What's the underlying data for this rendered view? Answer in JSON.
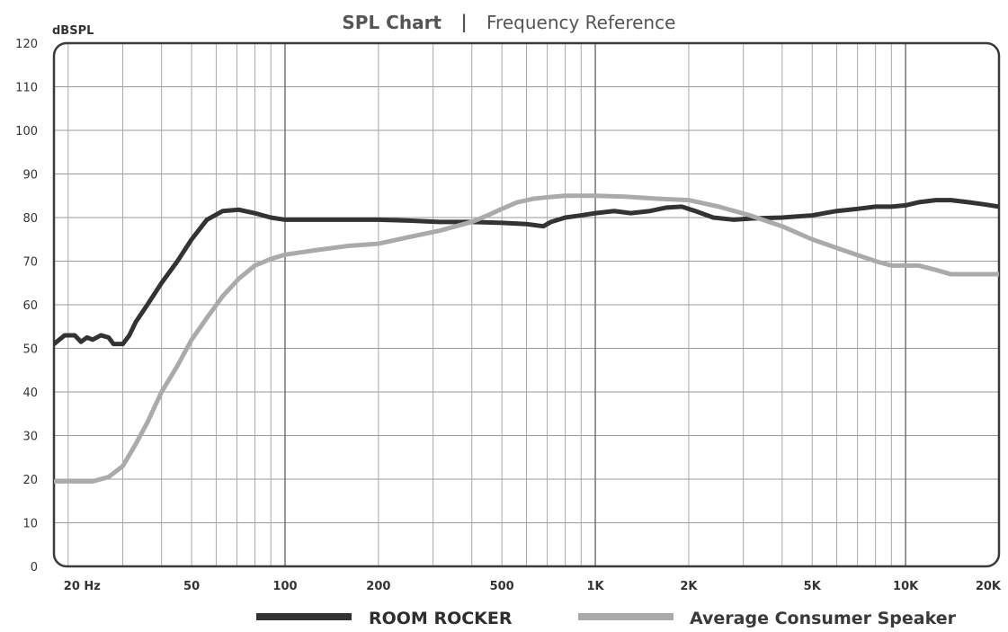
{
  "chart_data": {
    "type": "line",
    "title": "SPL Chart",
    "title_separator": "|",
    "subtitle": "Frequency Reference",
    "ylabel": "dBSPL",
    "xlabel": "",
    "x_scale": "log",
    "xlim": [
      18,
      20000
    ],
    "ylim": [
      0,
      120
    ],
    "grid": true,
    "legend_position": "bottom-right",
    "y_ticks": [
      0,
      10,
      20,
      30,
      40,
      50,
      60,
      70,
      80,
      90,
      100,
      110,
      120
    ],
    "x_ticks": [
      {
        "value": 20,
        "label": "20 Hz"
      },
      {
        "value": 50,
        "label": "50"
      },
      {
        "value": 100,
        "label": "100"
      },
      {
        "value": 200,
        "label": "200"
      },
      {
        "value": 500,
        "label": "500"
      },
      {
        "value": 1000,
        "label": "1K"
      },
      {
        "value": 2000,
        "label": "2K"
      },
      {
        "value": 5000,
        "label": "5K"
      },
      {
        "value": 10000,
        "label": "10K"
      },
      {
        "value": 20000,
        "label": "20K"
      }
    ],
    "series": [
      {
        "name": "ROOM ROCKER",
        "color": "#333333",
        "x": [
          18,
          19.5,
          21,
          22,
          23,
          24,
          25.5,
          27,
          28,
          30,
          31.5,
          33,
          36,
          40,
          45,
          50,
          56,
          63,
          71,
          80,
          90,
          100,
          125,
          160,
          200,
          250,
          315,
          400,
          500,
          600,
          680,
          720,
          800,
          900,
          1000,
          1150,
          1300,
          1500,
          1700,
          1900,
          2100,
          2400,
          2800,
          3200,
          4000,
          5000,
          6000,
          7000,
          8000,
          9000,
          10000,
          11000,
          12500,
          14000,
          16000,
          18000,
          20000
        ],
        "y": [
          51,
          53,
          53,
          51.5,
          52.5,
          52,
          53,
          52.5,
          51,
          51,
          53,
          56,
          60,
          65,
          70,
          75,
          79.5,
          81.5,
          81.8,
          81,
          80,
          79.5,
          79.5,
          79.5,
          79.5,
          79.3,
          79,
          79,
          78.8,
          78.5,
          78,
          79,
          80,
          80.5,
          81,
          81.5,
          81,
          81.5,
          82.3,
          82.5,
          81.5,
          80,
          79.5,
          79.8,
          80,
          80.5,
          81.5,
          82,
          82.5,
          82.5,
          82.8,
          83.5,
          84,
          84,
          83.5,
          83,
          82.5
        ]
      },
      {
        "name": "Average Consumer Speaker",
        "color": "#aaaaaa",
        "x": [
          18,
          20,
          24,
          27,
          30,
          33,
          36,
          40,
          45,
          50,
          56,
          63,
          71,
          80,
          90,
          100,
          112,
          125,
          160,
          200,
          250,
          315,
          400,
          450,
          500,
          560,
          630,
          710,
          800,
          900,
          1000,
          1250,
          1600,
          2000,
          2500,
          3150,
          4000,
          5000,
          6300,
          8000,
          9000,
          10000,
          11000,
          12500,
          14000,
          16000,
          18000,
          20000
        ],
        "y": [
          19.5,
          19.5,
          19.5,
          20.5,
          23,
          28,
          33,
          40,
          46,
          52,
          57,
          62,
          66,
          69,
          70.5,
          71.5,
          72,
          72.5,
          73.5,
          74,
          75.5,
          77,
          79,
          80.5,
          82,
          83.5,
          84.3,
          84.7,
          85,
          85,
          85,
          84.8,
          84.3,
          84,
          82.5,
          80.5,
          78,
          75,
          72.5,
          70,
          69,
          69,
          69,
          68,
          67,
          67,
          67,
          67
        ]
      }
    ]
  }
}
